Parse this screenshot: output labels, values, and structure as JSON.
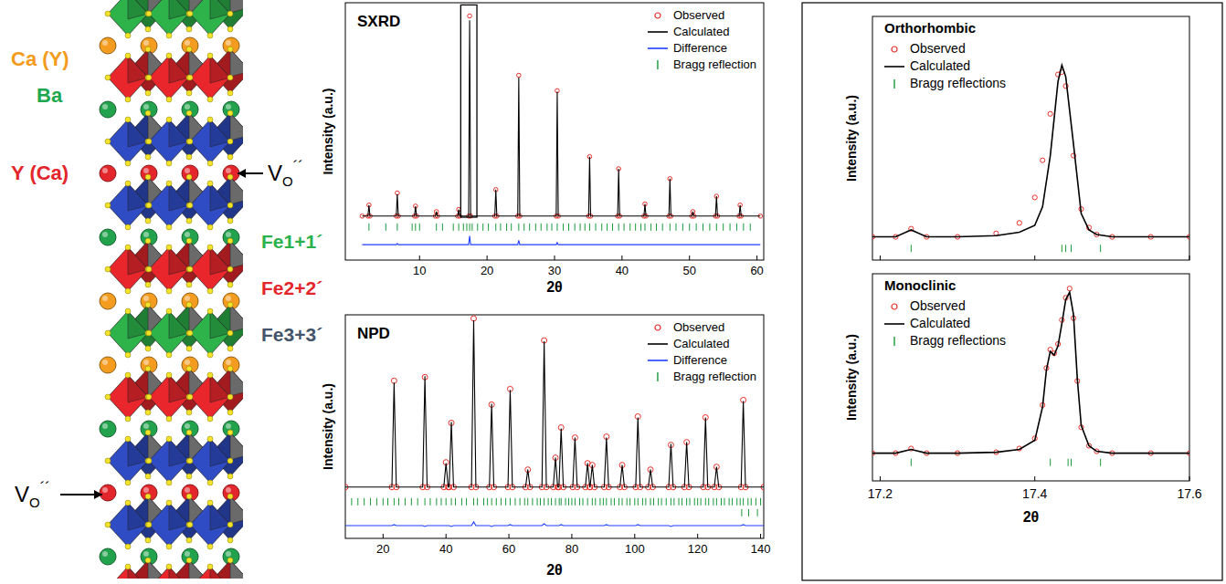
{
  "structure": {
    "site_labels": [
      {
        "text": "Ca (Y)",
        "color": "#f29b1c"
      },
      {
        "text": "Ba",
        "color": "#1fa84f"
      },
      {
        "text": "Y (Ca)",
        "color": "#e3262b"
      }
    ],
    "fe_labels": [
      {
        "text": "Fe1+1´",
        "color": "#2bb24c"
      },
      {
        "text": "Fe2+2´",
        "color": "#e3262b"
      },
      {
        "text": "Fe3+3´",
        "color": "#44546a"
      }
    ],
    "vacancy_label": {
      "main": "V",
      "sub": "O",
      "sup": "´´"
    }
  },
  "chart_data": [
    {
      "type": "line",
      "title": "SXRD",
      "x_label": "2θ",
      "y_label": "Intensity (a.u.)",
      "xlim": [
        -1,
        61
      ],
      "ylim": [
        -15,
        102
      ],
      "xticks": [
        10,
        20,
        30,
        40,
        50,
        60
      ],
      "tick_labels": "x",
      "grid": false,
      "legend": "upper right",
      "highlight": {
        "x": [
          16.1,
          18.5
        ],
        "y": [
          4.5,
          101
        ]
      },
      "x": [
        1.5,
        2.35,
        2.5,
        2.65,
        6.55,
        6.7,
        6.85,
        9.25,
        9.4,
        9.55,
        12.35,
        12.5,
        12.65,
        15.65,
        15.8,
        15.95,
        17.27,
        17.42,
        17.57,
        21.15,
        21.3,
        21.45,
        24.55,
        24.7,
        24.85,
        30.25,
        30.4,
        30.55,
        35.05,
        35.2,
        35.35,
        39.35,
        39.5,
        39.65,
        43.25,
        43.4,
        43.55,
        46.95,
        47.1,
        47.25,
        50.35,
        50.5,
        50.65,
        53.85,
        54.0,
        54.15,
        57.35,
        57.5,
        57.65,
        60.5
      ],
      "series": [
        {
          "name": "Observed",
          "type": "scatter",
          "marker": "open-circle",
          "color": "#e8302a",
          "values": [
            5,
            5,
            10,
            5,
            5,
            15.5,
            5,
            5,
            9.5,
            5,
            5,
            7,
            5,
            5,
            8,
            5,
            5,
            96,
            5,
            5,
            17,
            5,
            5,
            69,
            5,
            5,
            62,
            5,
            5,
            32,
            5,
            5,
            26.5,
            5,
            5,
            10.5,
            5,
            5,
            22,
            5,
            5,
            7,
            5,
            5,
            14,
            5,
            5,
            10,
            5,
            5
          ]
        },
        {
          "name": "Calculated",
          "type": "line",
          "line_style": "solid",
          "color": "#000000",
          "values": [
            5,
            5,
            10,
            5,
            5,
            15,
            5,
            5,
            9.5,
            5,
            5,
            7,
            5,
            5,
            8,
            5,
            5,
            94,
            5,
            5,
            17,
            5,
            5,
            68,
            5,
            5,
            61.5,
            5,
            5,
            32,
            5,
            5,
            26.5,
            5,
            5,
            10.5,
            5,
            5,
            22,
            5,
            5,
            7,
            5,
            5,
            14,
            5,
            5,
            10,
            5,
            5
          ]
        },
        {
          "name": "Difference",
          "type": "line",
          "line_style": "solid",
          "color": "#1f3fff",
          "values": [
            -8,
            -8,
            -8,
            -8,
            -8,
            -7.5,
            -8,
            -8,
            -8,
            -8,
            -8,
            -8,
            -8,
            -8,
            -8,
            -8,
            -8,
            -4,
            -8,
            -8,
            -8,
            -8,
            -8,
            -6,
            -8,
            -8,
            -7,
            -8,
            -8,
            -8,
            -8,
            -8,
            -8,
            -8,
            -8,
            -8,
            -8,
            -8,
            -8,
            -8,
            -8,
            -8,
            -8,
            -8,
            -8,
            -8,
            -8,
            -8,
            -8,
            -8
          ]
        },
        {
          "name": "Bragg reflection",
          "type": "ticks",
          "color": "#1a9a3a",
          "x": [
            2.5,
            5.0,
            6.7,
            8.9,
            9.4,
            10.0,
            12.5,
            13.4,
            15.0,
            15.8,
            16.5,
            17.0,
            17.42,
            17.8,
            18.6,
            19.4,
            20.2,
            21.3,
            22.0,
            22.9,
            23.6,
            24.7,
            25.5,
            26.3,
            27.2,
            28.0,
            28.9,
            29.6,
            30.4,
            31.3,
            32.1,
            33.0,
            33.8,
            34.5,
            35.2,
            36.1,
            37.0,
            37.8,
            38.6,
            39.5,
            40.3,
            41.2,
            42.0,
            42.8,
            43.4,
            44.3,
            45.1,
            46.0,
            47.1,
            48.0,
            49.0,
            50.0,
            51.0,
            52.0,
            53.0,
            54.0,
            55.0,
            56.0,
            57.0,
            58.0,
            59.0
          ]
        }
      ]
    },
    {
      "type": "line",
      "title": "NPD",
      "x_label": "2θ",
      "y_label": "Intensity (a.u.)",
      "xlim": [
        8,
        141
      ],
      "ylim": [
        -20,
        102
      ],
      "xticks": [
        20,
        40,
        60,
        80,
        100,
        120,
        140
      ],
      "tick_labels": "x",
      "grid": false,
      "legend": "upper right",
      "x": [
        8,
        22.8,
        23.5,
        24.2,
        32.6,
        33.3,
        34,
        39.3,
        40,
        40.7,
        41,
        41.7,
        42.4,
        48.1,
        48.8,
        49.5,
        53.8,
        54.5,
        55.2,
        59.7,
        60.4,
        61.1,
        65.3,
        66,
        66.7,
        70.5,
        71.2,
        71.9,
        74.1,
        74.8,
        75.5,
        75.9,
        76.6,
        77.3,
        80.3,
        81,
        81.7,
        84.3,
        85,
        85.7,
        85.8,
        86.5,
        87.2,
        90.3,
        91,
        91.7,
        95.3,
        96,
        96.7,
        100.3,
        101,
        101.7,
        104.3,
        105,
        105.7,
        110.8,
        111.5,
        112.2,
        115.8,
        116.5,
        117.2,
        121.8,
        122.5,
        123.2,
        125.3,
        126,
        126.7,
        133.8,
        134.5,
        135.2,
        141
      ],
      "series": [
        {
          "name": "Observed",
          "type": "scatter",
          "marker": "open-circle",
          "color": "#e8302a",
          "values": [
            8,
            8,
            66,
            8,
            8,
            68,
            8,
            8,
            21.5,
            8,
            8,
            43,
            8,
            8,
            100,
            8,
            8,
            53,
            8,
            8,
            61.5,
            8,
            8,
            17.5,
            8,
            8,
            88,
            8,
            8,
            24,
            8,
            8,
            40.5,
            8,
            8,
            35,
            8,
            8,
            21,
            8,
            8,
            20,
            8,
            8,
            35.5,
            8,
            8,
            20,
            8,
            8,
            46.5,
            8,
            8,
            17.5,
            8,
            8,
            31,
            8,
            8,
            32.5,
            8,
            8,
            46,
            8,
            8,
            19,
            8,
            8,
            55.5,
            8,
            8
          ]
        },
        {
          "name": "Calculated",
          "type": "line",
          "line_style": "solid",
          "color": "#000000",
          "values": [
            8,
            8,
            65,
            8,
            8,
            68.5,
            8,
            8,
            21,
            8,
            8,
            43.5,
            8,
            8,
            99,
            8,
            8,
            53.5,
            8,
            8,
            61,
            8,
            8,
            17.5,
            8,
            8,
            87.5,
            8,
            8,
            24,
            8,
            8,
            40,
            8,
            8,
            35,
            8,
            8,
            21,
            8,
            8,
            20,
            8,
            8,
            35,
            8,
            8,
            20,
            8,
            8,
            46,
            8,
            8,
            17.5,
            8,
            8,
            31.5,
            8,
            8,
            32.5,
            8,
            8,
            46,
            8,
            8,
            19,
            8,
            8,
            55,
            8,
            8
          ]
        },
        {
          "name": "Difference",
          "type": "line",
          "line_style": "solid",
          "color": "#1f3fff",
          "values": [
            -13,
            -13,
            -12.5,
            -13,
            -13,
            -13.5,
            -13,
            -13,
            -13,
            -13,
            -13,
            -13.5,
            -13,
            -13,
            -11,
            -13,
            -13,
            -13.5,
            -13,
            -13,
            -12.5,
            -13,
            -13,
            -13,
            -13,
            -13,
            -12,
            -13,
            -13,
            -13,
            -13,
            -13,
            -12.5,
            -13,
            -13,
            -13,
            -13,
            -13,
            -13,
            -13,
            -13,
            -13,
            -13,
            -13,
            -12.5,
            -13,
            -13,
            -13,
            -13,
            -13,
            -12.5,
            -13,
            -13,
            -13,
            -13,
            -13,
            -13.5,
            -13,
            -13,
            -13,
            -13,
            -13,
            -13,
            -13,
            -13,
            -13,
            -13,
            -13,
            -12.5,
            -13,
            -13
          ]
        },
        {
          "name": "Bragg reflection",
          "type": "ticks",
          "color": "#1a9a3a",
          "x": [
            10,
            12,
            14,
            16,
            18,
            20,
            21.5,
            23.5,
            25,
            27,
            29,
            31,
            33.3,
            35,
            37,
            38.5,
            40,
            41.7,
            43,
            45,
            46.5,
            48.8,
            50,
            52,
            53.2,
            54.5,
            56,
            57.5,
            59,
            60.4,
            62,
            63.5,
            65,
            66,
            67.5,
            69,
            70,
            71.2,
            72.5,
            73.5,
            74.8,
            76,
            76.6,
            78,
            79,
            80,
            81,
            82.5,
            83.5,
            85,
            86.5,
            87.5,
            89,
            90,
            91,
            92.5,
            93.5,
            95,
            96,
            97.5,
            98.5,
            100,
            101,
            102.5,
            103.5,
            105,
            106,
            107.5,
            108.5,
            110,
            111.5,
            112.5,
            114,
            115,
            116.5,
            117.5,
            119,
            120,
            121,
            122.5,
            123.5,
            125,
            126,
            127.5,
            128.5,
            130,
            131,
            132.5,
            133.5,
            134.5,
            136,
            137,
            138.5,
            140
          ]
        },
        {
          "type": "ticks",
          "color": "#1a9a3a",
          "x": [
            134,
            136.2,
            139
          ]
        }
      ]
    },
    {
      "type": "line",
      "title": "Orthorhombic",
      "y_label": "Intensity (a.u.)",
      "xlim": [
        17.19,
        17.6
      ],
      "ylim": [
        -5,
        100
      ],
      "xticks": [
        17.2,
        17.4,
        17.6
      ],
      "tick_labels": false,
      "grid": false,
      "legend": "upper left",
      "x": [
        17.19,
        17.22,
        17.24,
        17.26,
        17.3,
        17.35,
        17.38,
        17.4,
        17.41,
        17.42,
        17.43,
        17.435,
        17.44,
        17.45,
        17.46,
        17.47,
        17.48,
        17.5,
        17.55,
        17.6
      ],
      "series": [
        {
          "name": "Observed",
          "type": "scatter",
          "marker": "open-circle",
          "color": "#e8302a",
          "values": [
            5,
            5,
            8.5,
            5,
            5,
            6.5,
            11,
            22,
            38,
            58,
            75,
            76,
            70,
            40,
            17,
            9,
            6,
            5,
            5,
            5
          ]
        },
        {
          "name": "Calculated",
          "type": "line",
          "line_style": "solid",
          "color": "#000000",
          "values": [
            5,
            5,
            8,
            5,
            5,
            5.5,
            7,
            10,
            18,
            40,
            72,
            79,
            74,
            45,
            15,
            8,
            6,
            5,
            5,
            5
          ]
        },
        {
          "name": "Bragg reflections",
          "type": "ticks",
          "color": "#1a9a3a",
          "x": [
            17.24,
            17.435,
            17.44,
            17.447,
            17.485
          ]
        }
      ]
    },
    {
      "type": "line",
      "title": "Monoclinic",
      "x_label": "2θ",
      "y_label": "Intensity (a.u.)",
      "xlim": [
        17.19,
        17.6
      ],
      "ylim": [
        -10,
        102
      ],
      "xticks": [
        17.2,
        17.4,
        17.6
      ],
      "tick_labels": "x",
      "grid": false,
      "legend": "upper left",
      "x": [
        17.19,
        17.22,
        17.24,
        17.26,
        17.3,
        17.35,
        17.38,
        17.4,
        17.41,
        17.415,
        17.42,
        17.425,
        17.43,
        17.435,
        17.44,
        17.445,
        17.45,
        17.455,
        17.46,
        17.47,
        17.48,
        17.5,
        17.55,
        17.6
      ],
      "series": [
        {
          "name": "Observed",
          "type": "scatter",
          "marker": "open-circle",
          "color": "#e8302a",
          "values": [
            5,
            5,
            7.5,
            5,
            5,
            5.5,
            7.5,
            13,
            31,
            51,
            61,
            59,
            64,
            77,
            89,
            94,
            78,
            44,
            19,
            9,
            6,
            5,
            5,
            5
          ]
        },
        {
          "name": "Calculated",
          "type": "line",
          "line_style": "solid",
          "color": "#000000",
          "values": [
            5,
            5,
            7,
            5,
            5,
            5.5,
            7,
            12,
            30,
            50,
            60,
            58,
            63,
            75,
            88,
            92,
            80,
            45,
            20,
            9,
            6,
            5,
            5,
            5
          ]
        },
        {
          "name": "Bragg reflections",
          "type": "ticks",
          "color": "#1a9a3a",
          "x": [
            17.24,
            17.42,
            17.443,
            17.447,
            17.485
          ]
        }
      ]
    }
  ]
}
